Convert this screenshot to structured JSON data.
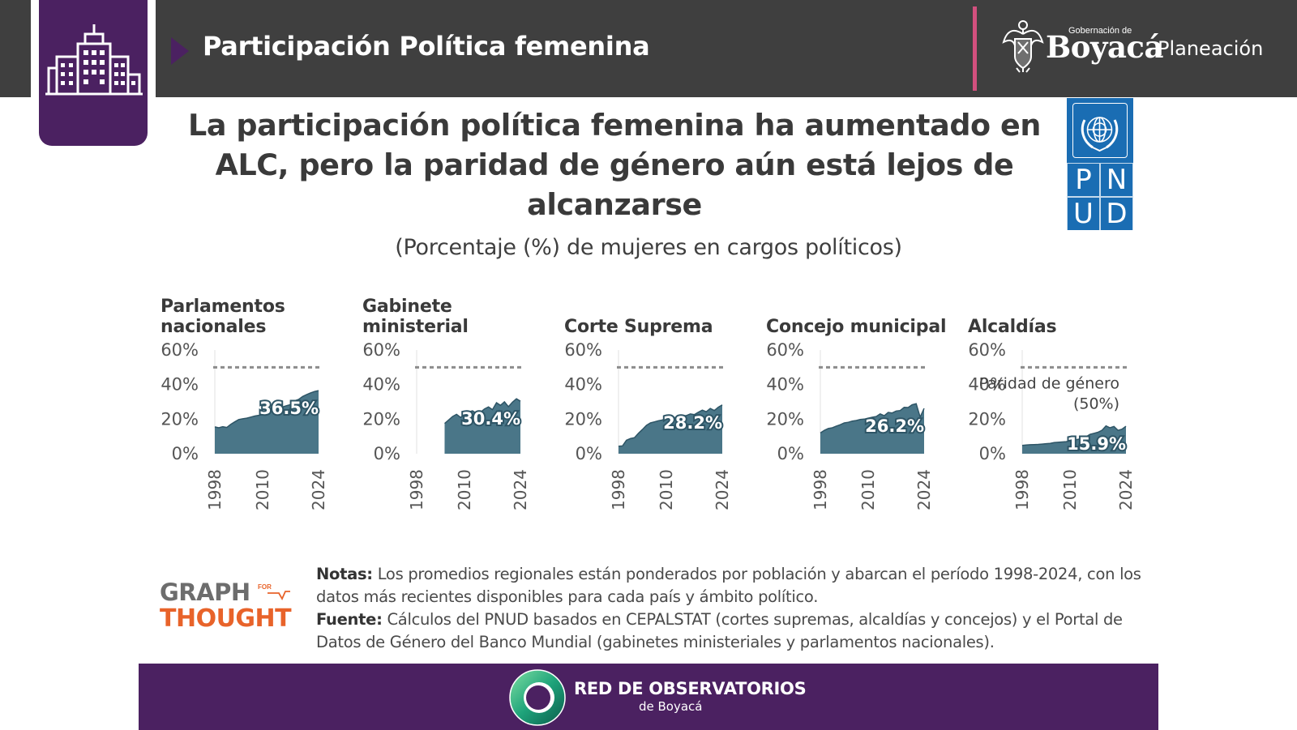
{
  "header": {
    "title": "Participación Política femenina",
    "gov_small": "Gobernación de",
    "gov_name": "Boyacá",
    "gov_unit": "Planeación",
    "bg_color": "#3f3f3f",
    "accent_color": "#4b2161",
    "divider_color": "#d2507e"
  },
  "icons": {
    "building": "city-buildings-icon",
    "crest": "coat-of-arms-icon",
    "undp_emblem": "un-emblem-icon",
    "footer": "circular-ring-logo-icon"
  },
  "undp_logo": {
    "letters": [
      "P",
      "N",
      "U",
      "D"
    ],
    "color": "#1a6db3"
  },
  "headline": "La participación política femenina ha aumentado en ALC, pero la paridad de género aún está lejos de alcanzarse",
  "subtitle": "(Porcentaje (%) de mujeres en cargos políticos)",
  "chart_data": [
    {
      "type": "area",
      "title": "Parlamentos nacionales",
      "ylim": [
        0,
        60
      ],
      "yticks": [
        "60%",
        "40%",
        "20%",
        "0%"
      ],
      "xticks": [
        "1998",
        "2010",
        "2024"
      ],
      "x": [
        1998,
        1999,
        2000,
        2001,
        2002,
        2003,
        2004,
        2005,
        2006,
        2007,
        2008,
        2009,
        2010,
        2011,
        2012,
        2013,
        2014,
        2015,
        2016,
        2017,
        2018,
        2019,
        2020,
        2021,
        2022,
        2023,
        2024
      ],
      "values": [
        15.5,
        15.0,
        15.6,
        15.2,
        17.0,
        18.4,
        19.8,
        20.2,
        20.6,
        21.2,
        21.8,
        22.2,
        22.7,
        23.4,
        24.2,
        25.2,
        26.3,
        27.1,
        27.8,
        28.4,
        30.6,
        31.4,
        33.1,
        34.2,
        35.2,
        36.0,
        36.5
      ],
      "value_label": "36.5%",
      "parity": 50,
      "grid": false,
      "color": "#4a7688"
    },
    {
      "type": "area",
      "title": "Gabinete ministerial",
      "ylim": [
        0,
        60
      ],
      "yticks": [
        "60%",
        "40%",
        "20%",
        "0%"
      ],
      "xticks": [
        "1998",
        "2010",
        "2024"
      ],
      "x": [
        2005,
        2006,
        2007,
        2008,
        2009,
        2010,
        2011,
        2012,
        2013,
        2014,
        2015,
        2016,
        2017,
        2018,
        2019,
        2020,
        2021,
        2022,
        2023,
        2024
      ],
      "values": [
        17.5,
        19.5,
        21.5,
        22.8,
        21.0,
        22.4,
        24.2,
        24.8,
        23.3,
        24.0,
        25.9,
        27.1,
        25.5,
        29.5,
        28.0,
        30.0,
        27.2,
        29.8,
        31.8,
        30.4
      ],
      "value_label": "30.4%",
      "parity": 50,
      "grid": false,
      "color": "#4a7688"
    },
    {
      "type": "area",
      "title": "Corte Suprema",
      "ylim": [
        0,
        60
      ],
      "yticks": [
        "60%",
        "40%",
        "20%",
        "0%"
      ],
      "xticks": [
        "1998",
        "2010",
        "2024"
      ],
      "x": [
        1998,
        1999,
        2000,
        2001,
        2002,
        2003,
        2004,
        2005,
        2006,
        2007,
        2008,
        2009,
        2010,
        2011,
        2012,
        2013,
        2014,
        2015,
        2016,
        2017,
        2018,
        2019,
        2020,
        2021,
        2022,
        2023,
        2024
      ],
      "values": [
        4.3,
        4.5,
        7.8,
        8.8,
        9.3,
        11.8,
        14.0,
        16.4,
        17.8,
        18.4,
        19.1,
        19.5,
        20.7,
        21.2,
        21.0,
        20.9,
        21.8,
        22.1,
        23.0,
        22.6,
        24.0,
        25.2,
        24.3,
        26.2,
        25.0,
        26.9,
        28.2
      ],
      "value_label": "28.2%",
      "parity": 50,
      "grid": false,
      "color": "#4a7688"
    },
    {
      "type": "area",
      "title": "Concejo municipal",
      "ylim": [
        0,
        60
      ],
      "yticks": [
        "60%",
        "40%",
        "20%",
        "0%"
      ],
      "xticks": [
        "1998",
        "2010",
        "2024"
      ],
      "x": [
        1998,
        1999,
        2000,
        2001,
        2002,
        2003,
        2004,
        2005,
        2006,
        2007,
        2008,
        2009,
        2010,
        2011,
        2012,
        2013,
        2014,
        2015,
        2016,
        2017,
        2018,
        2019,
        2020,
        2021,
        2022,
        2023,
        2024
      ],
      "values": [
        12.0,
        13.5,
        14.6,
        15.0,
        16.0,
        16.8,
        17.8,
        18.2,
        18.9,
        19.2,
        19.8,
        20.0,
        20.6,
        21.1,
        21.5,
        23.0,
        22.0,
        23.9,
        23.6,
        24.7,
        25.0,
        26.8,
        26.7,
        28.3,
        28.9,
        21.2,
        26.2
      ],
      "value_label": "26.2%",
      "parity": 50,
      "grid": false,
      "color": "#4a7688"
    },
    {
      "type": "area",
      "title": "Alcaldías",
      "ylim": [
        0,
        60
      ],
      "yticks": [
        "60%",
        "40%",
        "20%",
        "0%"
      ],
      "xticks": [
        "1998",
        "2010",
        "2024"
      ],
      "x": [
        1998,
        1999,
        2000,
        2001,
        2002,
        2003,
        2004,
        2005,
        2006,
        2007,
        2008,
        2009,
        2010,
        2011,
        2012,
        2013,
        2014,
        2015,
        2016,
        2017,
        2018,
        2019,
        2020,
        2021,
        2022,
        2023,
        2024
      ],
      "values": [
        4.8,
        5.0,
        5.2,
        5.3,
        5.4,
        5.6,
        5.8,
        6.0,
        6.4,
        6.6,
        6.8,
        7.0,
        7.4,
        7.9,
        8.3,
        8.9,
        9.8,
        11.2,
        11.8,
        12.4,
        13.6,
        16.1,
        15.0,
        15.8,
        13.5,
        14.2,
        15.9
      ],
      "value_label": "15.9%",
      "parity": 50,
      "parity_label": [
        "Paridad de género",
        "(50%)"
      ],
      "grid": false,
      "color": "#4a7688"
    }
  ],
  "notes": {
    "notes_label": "Notas:",
    "notes_text": " Los promedios regionales están ponderados por población y abarcan el período 1998-2024, con los datos más recientes disponibles para cada país y ámbito político.",
    "source_label": "Fuente:",
    "source_text": " Cálculos del PNUD basados en CEPALSTAT (cortes supremas, alcaldías y concejos) y el Portal de Datos de Género del Banco Mundial (gabinetes ministeriales y parlamentos nacionales)."
  },
  "brand": {
    "line1": "GRAPH",
    "for": "FOR",
    "line2": "THOUGHT",
    "color": "#e8632a"
  },
  "footer": {
    "line1": "RED DE OBSERVATORIOS",
    "line2": "de Boyacá",
    "color": "#4b2161"
  }
}
